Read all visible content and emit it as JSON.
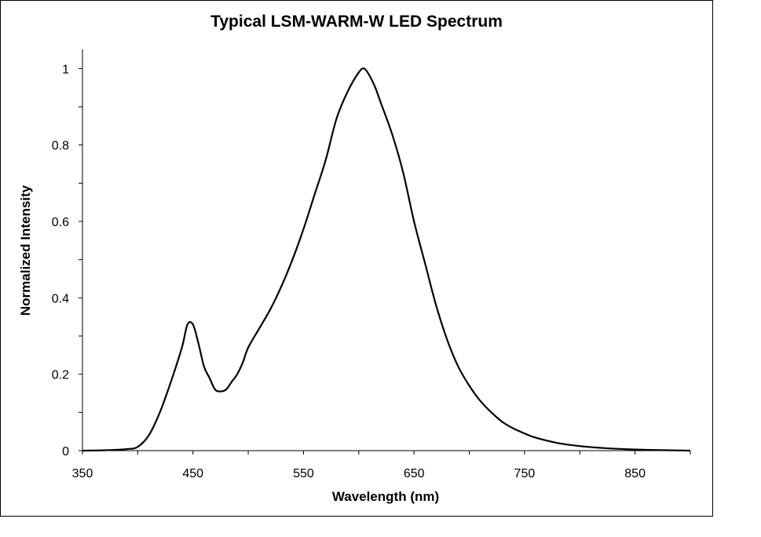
{
  "chart_data": {
    "type": "line",
    "title": "Typical LSM-WARM-W LED Spectrum",
    "xlabel": "Wavelength (nm)",
    "ylabel": "Normalized Intensity",
    "xlim": [
      350,
      900
    ],
    "ylim": [
      0,
      1.05
    ],
    "x_ticks": [
      350,
      450,
      550,
      650,
      750,
      850
    ],
    "y_ticks": [
      0,
      0.2,
      0.4,
      0.6,
      0.8,
      1
    ],
    "y_tick_labels": [
      "0",
      "0.2",
      "0.4",
      "0.6",
      "0.8",
      "1"
    ],
    "grid": false,
    "legend": "none",
    "series": [
      {
        "color": "#000000",
        "x": [
          350,
          370,
          390,
          400,
          410,
          420,
          430,
          440,
          445,
          450,
          455,
          460,
          465,
          470,
          475,
          480,
          485,
          490,
          495,
          500,
          510,
          520,
          530,
          540,
          550,
          560,
          570,
          580,
          590,
          600,
          605,
          610,
          615,
          620,
          630,
          640,
          650,
          660,
          670,
          680,
          690,
          700,
          710,
          720,
          730,
          740,
          750,
          760,
          780,
          800,
          820,
          840,
          860,
          880,
          900
        ],
        "y": [
          0,
          0.001,
          0.004,
          0.01,
          0.04,
          0.1,
          0.18,
          0.27,
          0.33,
          0.33,
          0.28,
          0.22,
          0.19,
          0.16,
          0.155,
          0.16,
          0.18,
          0.2,
          0.23,
          0.27,
          0.32,
          0.37,
          0.43,
          0.5,
          0.58,
          0.67,
          0.76,
          0.87,
          0.94,
          0.99,
          1.0,
          0.98,
          0.95,
          0.91,
          0.83,
          0.73,
          0.6,
          0.49,
          0.38,
          0.29,
          0.22,
          0.17,
          0.13,
          0.1,
          0.075,
          0.058,
          0.045,
          0.034,
          0.02,
          0.012,
          0.007,
          0.004,
          0.002,
          0.001,
          0.0
        ]
      }
    ]
  }
}
